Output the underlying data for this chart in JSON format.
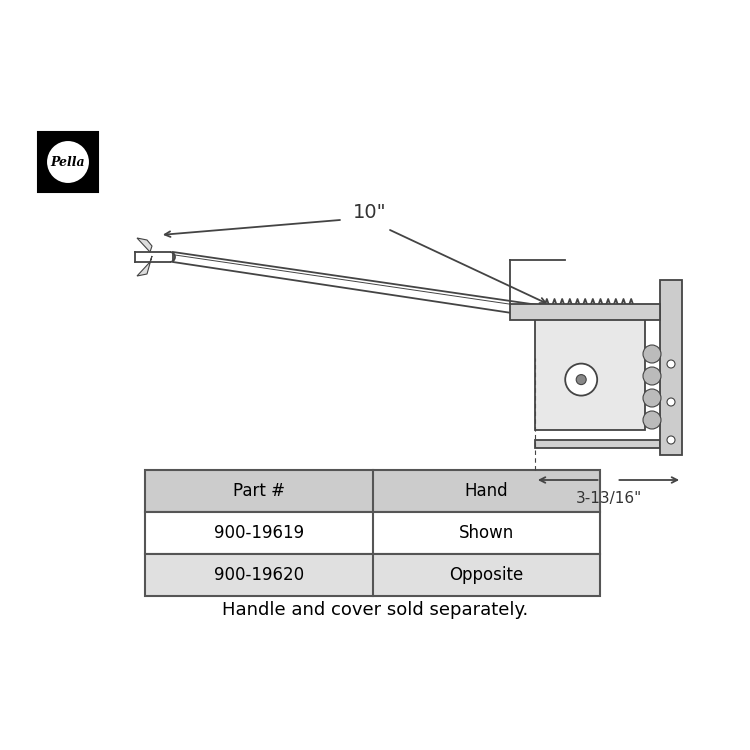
{
  "bg_color": "#ffffff",
  "table_headers": [
    "Part #",
    "Hand"
  ],
  "table_data": [
    [
      "900-19619",
      "Shown"
    ],
    [
      "900-19620",
      "Opposite"
    ]
  ],
  "header_bg": "#cccccc",
  "row1_bg": "#ffffff",
  "row2_bg": "#e0e0e0",
  "footnote": "Handle and cover sold separately.",
  "dim_10in": "10\"",
  "dim_3_13_16": "3-13/16\""
}
